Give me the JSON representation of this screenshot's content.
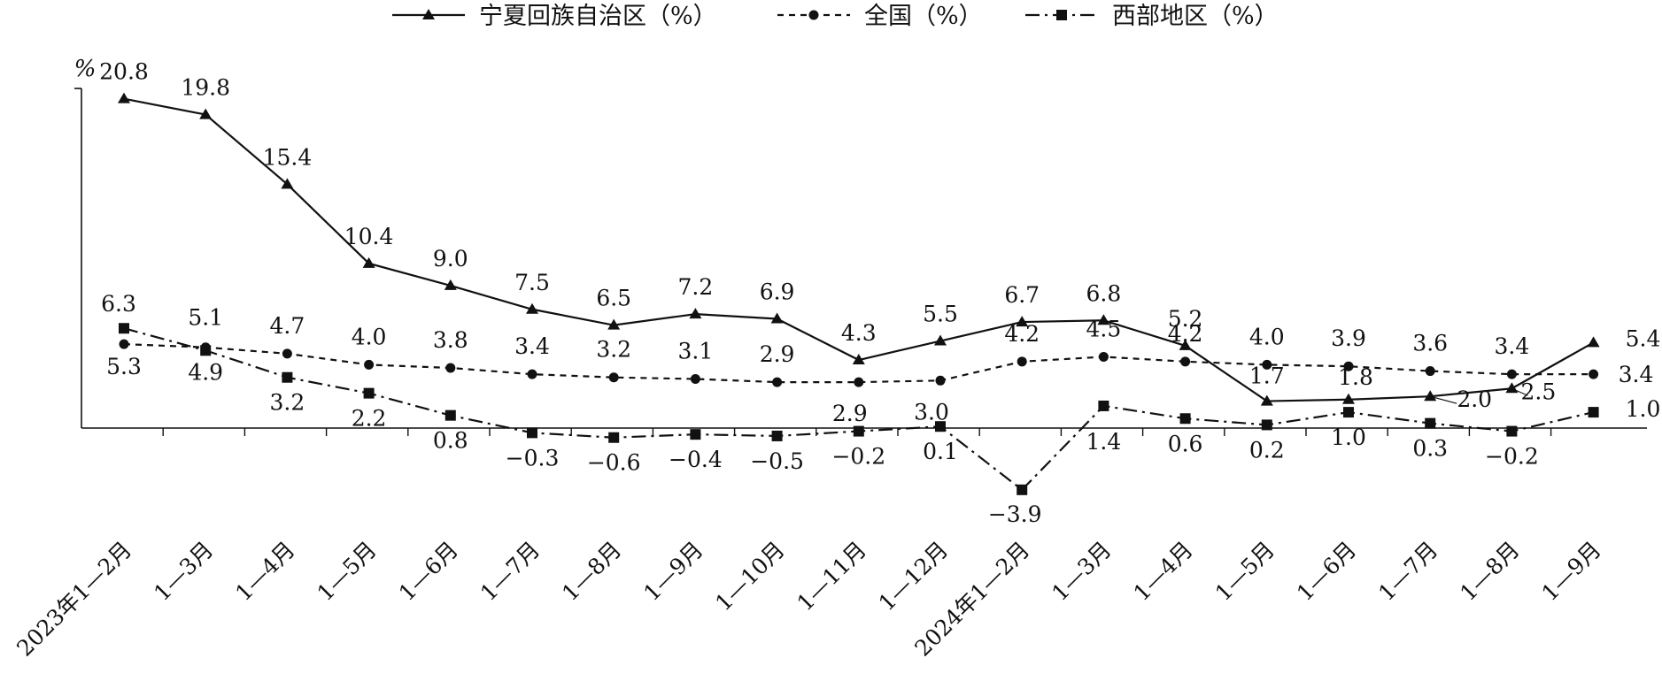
{
  "chart_data": {
    "type": "line",
    "unit_label": "%",
    "categories": [
      "2023年1—2月",
      "1—3月",
      "1—4月",
      "1—5月",
      "1—6月",
      "1—7月",
      "1—8月",
      "1—9月",
      "1—10月",
      "1—11月",
      "1—12月",
      "2024年1—2月",
      "1—3月",
      "1—4月",
      "1—5月",
      "1—6月",
      "1—7月",
      "1—8月",
      "1—9月"
    ],
    "ylim": [
      -5,
      23
    ],
    "grid": false,
    "legend_position": "top",
    "series": [
      {
        "name": "宁夏回族自治区（%）",
        "values": [
          20.8,
          19.8,
          15.4,
          10.4,
          9.0,
          7.5,
          6.5,
          7.2,
          6.9,
          4.3,
          5.5,
          6.7,
          6.8,
          5.2,
          1.7,
          1.8,
          2.0,
          2.5,
          5.4
        ],
        "labels": [
          "20.8",
          "19.8",
          "15.4",
          "10.4",
          "9.0",
          "7.5",
          "6.5",
          "7.2",
          "6.9",
          "4.3",
          "5.5",
          "6.7",
          "6.8",
          "5.2",
          "1.7",
          "1.8",
          "2.0",
          "2.5",
          "5.4"
        ],
        "line_style": "solid",
        "marker": "triangle",
        "color": "#111111"
      },
      {
        "name": "全国（%）",
        "values": [
          5.3,
          5.1,
          4.7,
          4.0,
          3.8,
          3.4,
          3.2,
          3.1,
          2.9,
          2.9,
          3.0,
          4.2,
          4.5,
          4.2,
          4.0,
          3.9,
          3.6,
          3.4,
          3.4
        ],
        "labels": [
          "5.3",
          "5.1",
          "4.7",
          "4.0",
          "3.8",
          "3.4",
          "3.2",
          "3.1",
          "2.9",
          "2.9",
          "3.0",
          "4.2",
          "4.5",
          "4.2",
          "4.0",
          "3.9",
          "3.6",
          "3.4",
          "3.4"
        ],
        "line_style": "dashed",
        "marker": "circle",
        "color": "#111111"
      },
      {
        "name": "西部地区（%）",
        "values": [
          6.3,
          4.9,
          3.2,
          2.2,
          0.8,
          -0.3,
          -0.6,
          -0.4,
          -0.5,
          -0.2,
          0.1,
          -3.9,
          1.4,
          0.6,
          0.2,
          1.0,
          0.3,
          -0.2,
          1.0
        ],
        "labels": [
          "6.3",
          "4.9",
          "3.2",
          "2.2",
          "0.8",
          "−0.3",
          "−0.6",
          "−0.4",
          "−0.5",
          "−0.2",
          "0.1",
          "−3.9",
          "1.4",
          "0.6",
          "0.2",
          "1.0",
          "0.3",
          "−0.2",
          "1.0"
        ],
        "line_style": "dashdot",
        "marker": "square",
        "color": "#111111"
      }
    ]
  }
}
